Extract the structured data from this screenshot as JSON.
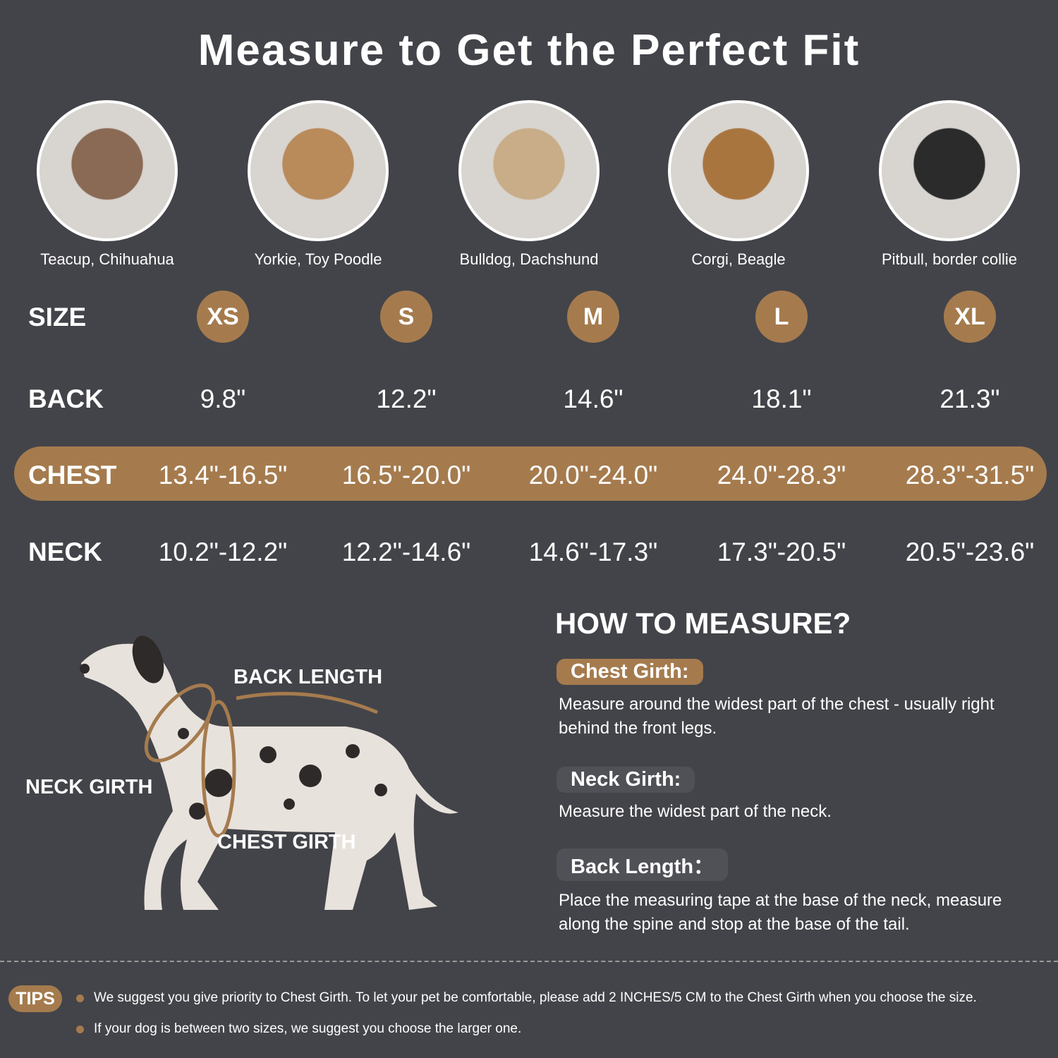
{
  "title": "Measure to Get the Perfect Fit",
  "breeds": [
    {
      "caption": "Teacup, Chihuahua",
      "color": "#8a6a55"
    },
    {
      "caption": "Yorkie, Toy Poodle",
      "color": "#b98a5a"
    },
    {
      "caption": "Bulldog, Dachshund",
      "color": "#c9ad88"
    },
    {
      "caption": "Corgi, Beagle",
      "color": "#a9753f"
    },
    {
      "caption": "Pitbull, border collie",
      "color": "#2b2b2b"
    }
  ],
  "table": {
    "size_label": "SIZE",
    "back_label": "BACK",
    "chest_label": "CHEST",
    "neck_label": "NECK",
    "sizes": [
      "XS",
      "S",
      "M",
      "L",
      "XL"
    ],
    "back": [
      "9.8\"",
      "12.2\"",
      "14.6\"",
      "18.1\"",
      "21.3\""
    ],
    "chest": [
      "13.4\"-16.5\"",
      "16.5\"-20.0\"",
      "20.0\"-24.0\"",
      "24.0\"-28.3\"",
      "28.3\"-31.5\""
    ],
    "neck": [
      "10.2\"-12.2\"",
      "12.2\"-14.6\"",
      "14.6\"-17.3\"",
      "17.3\"-20.5\"",
      "20.5\"-23.6\""
    ]
  },
  "diagram": {
    "back_length": "BACK LENGTH",
    "neck_girth": "NECK GIRTH",
    "chest_girth": "CHEST GIRTH"
  },
  "how": {
    "title": "HOW TO MEASURE?",
    "chest_label": "Chest Girth:",
    "chest_desc": "Measure around the widest part of the chest - usually right behind the front legs.",
    "neck_label": "Neck Girth:",
    "neck_desc": "Measure the widest part of the neck.",
    "back_label": "Back Length：",
    "back_desc": "Place the measuring tape at the base of the neck, measure along the spine and stop at the base of the tail."
  },
  "tips": {
    "label": "TIPS",
    "items": [
      "We suggest you give priority to Chest Girth. To let your pet be comfortable, please add 2 INCHES/5 CM to the Chest Girth when you choose the size.",
      "If your dog is between two sizes, we suggest you choose the larger one."
    ]
  },
  "colors": {
    "background": "#434449",
    "accent": "#a57b4e"
  }
}
